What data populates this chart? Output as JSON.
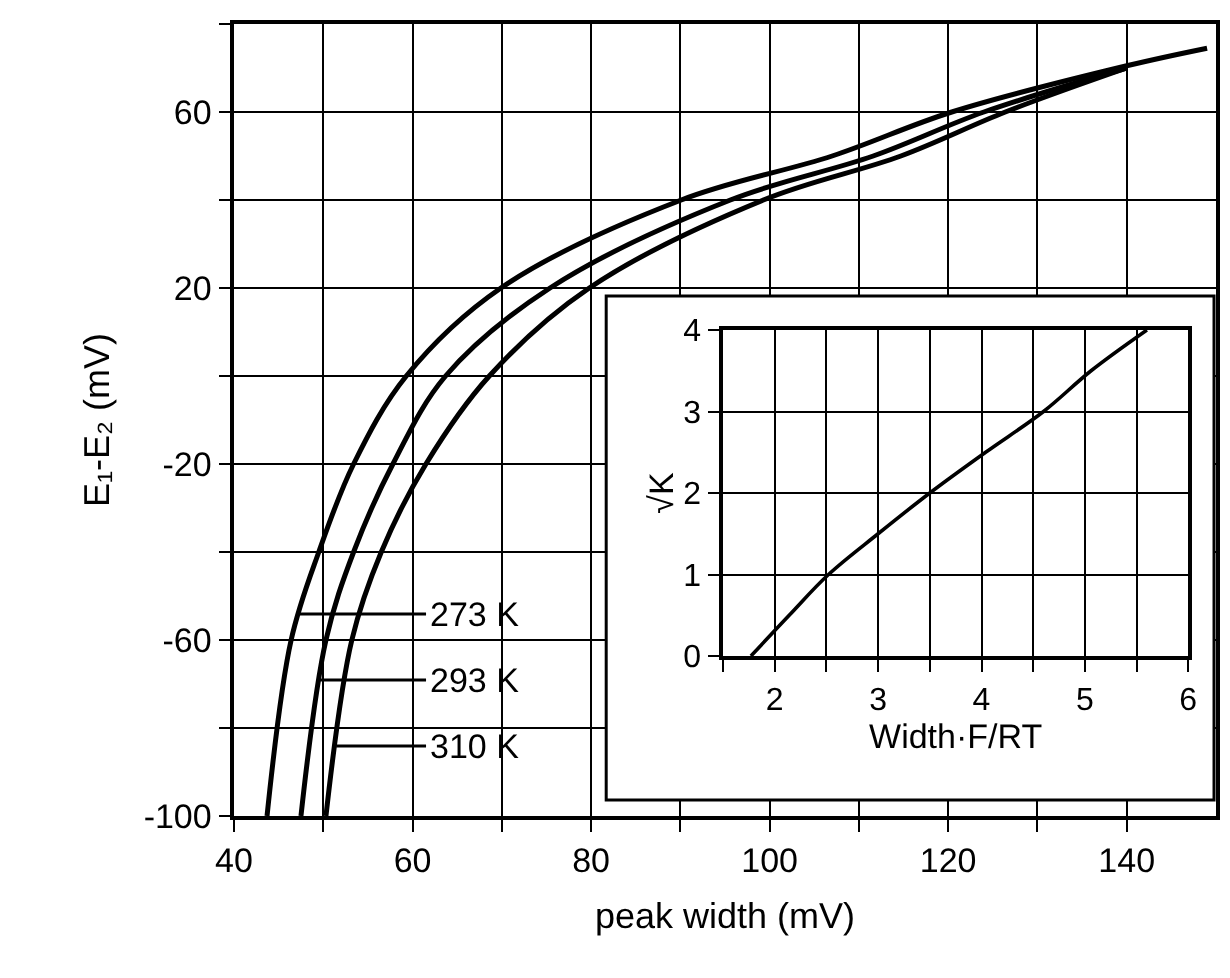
{
  "chart_data": [
    {
      "type": "line",
      "xlabel": "peak width (mV)",
      "ylabel": "E₁-E₂ (mV)",
      "xlim": [
        40,
        150
      ],
      "ylim": [
        -100,
        80
      ],
      "xticks": [
        40,
        {
          "value": 50,
          "label": null
        },
        60,
        {
          "value": 70,
          "label": null
        },
        80,
        {
          "value": 90,
          "label": null
        },
        100,
        {
          "value": 110,
          "label": null
        },
        120,
        {
          "value": 130,
          "label": null
        },
        140
      ],
      "yticks": [
        -100,
        {
          "value": -80,
          "label": null
        },
        -60,
        {
          "value": -40,
          "label": null
        },
        -20,
        {
          "value": 0,
          "label": null
        },
        20,
        {
          "value": 40,
          "label": null
        },
        60,
        {
          "value": 80,
          "label": null
        }
      ],
      "grid": true,
      "series": [
        {
          "name": "273 K",
          "color": "#000000",
          "x": [
            43.7,
            46.4,
            49.5,
            53.4,
            59.3,
            69.9,
            90.1,
            107,
            120.4,
            140,
            149
          ],
          "values": [
            -100,
            -60,
            -40,
            -20,
            0,
            20,
            40,
            50,
            60,
            70.5,
            74.5
          ]
        },
        {
          "name": "293 K",
          "color": "#000000",
          "x": [
            47.5,
            50.3,
            53.4,
            57.8,
            63.7,
            75.4,
            95.6,
            111.6,
            124,
            140
          ],
          "values": [
            -100,
            -60,
            -40,
            -20,
            0,
            20,
            40,
            50,
            60,
            70
          ]
        },
        {
          "name": "310 K",
          "color": "#000000",
          "x": [
            50.3,
            53.2,
            56.5,
            61.5,
            68.6,
            79.8,
            99.3,
            114.7,
            126.4,
            140
          ],
          "values": [
            -100,
            -60,
            -40,
            -20,
            0,
            20,
            40,
            50,
            60,
            70
          ]
        }
      ],
      "legend": "bottom left"
    },
    {
      "type": "line",
      "xlabel": "Width·F/RT",
      "ylabel": "√K",
      "xlim": [
        1.5,
        6
      ],
      "ylim": [
        0,
        4
      ],
      "xticks": [
        {
          "value": 1.5,
          "label": null
        },
        2,
        {
          "value": 2.5,
          "label": null
        },
        3,
        {
          "value": 3.5,
          "label": null
        },
        4,
        {
          "value": 4.5,
          "label": null
        },
        5,
        {
          "value": 5.5,
          "label": null
        },
        6
      ],
      "yticks": [
        0,
        1,
        2,
        3,
        4
      ],
      "grid": true,
      "series": [
        {
          "color": "#000000",
          "x": [
            1.77,
            2.14,
            2.52,
            3.0,
            3.5,
            4.04,
            4.6,
            5.06,
            5.6
          ],
          "values": [
            0,
            0.5,
            1,
            1.5,
            2,
            2.5,
            3,
            3.5,
            4
          ]
        }
      ]
    }
  ]
}
